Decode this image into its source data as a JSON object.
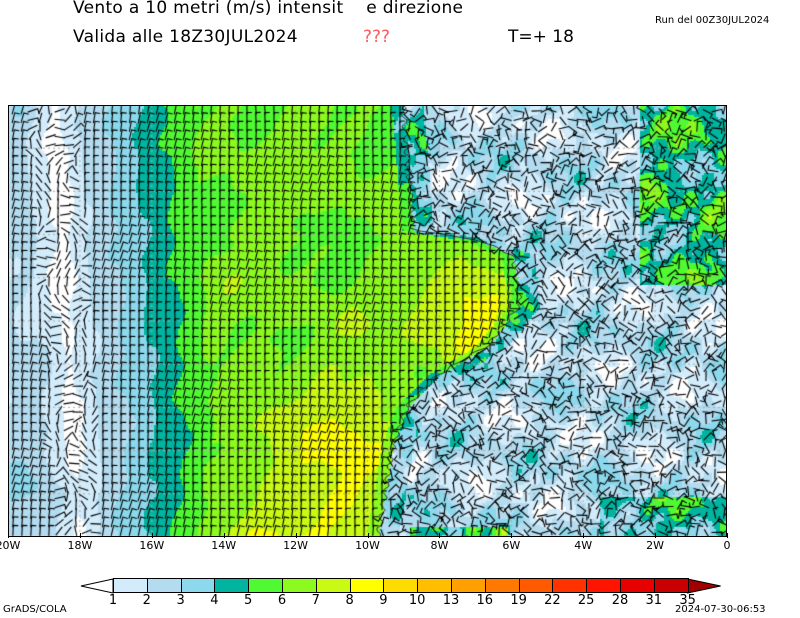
{
  "header": {
    "title": "Vento a 10 metri (m/s) intensit    e direzione",
    "valid": "Valida alle 18Z30JUL2024",
    "unknown_marker": "???",
    "timestep": "T=+ 18",
    "run": "Run del 00Z30JUL2024"
  },
  "map": {
    "lon_range": [
      -20,
      0
    ],
    "x_ticks": [
      "20W",
      "18W",
      "16W",
      "14W",
      "12W",
      "10W",
      "8W",
      "6W",
      "4W",
      "2W",
      "0"
    ],
    "gridlines": "dotted",
    "field": "wind speed 10 m with wind barbs"
  },
  "legend": {
    "levels": [
      "1",
      "2",
      "3",
      "4",
      "5",
      "6",
      "7",
      "8",
      "9",
      "10",
      "13",
      "16",
      "19",
      "22",
      "25",
      "28",
      "31",
      "35"
    ],
    "below_color": "#ffffff",
    "colors": [
      "#d2ecfc",
      "#b4dcf0",
      "#8cd8ec",
      "#00b4a0",
      "#50fa32",
      "#8cfa1e",
      "#c8fa14",
      "#ffff00",
      "#ffdc00",
      "#ffbe00",
      "#ffa000",
      "#ff7800",
      "#ff5a00",
      "#ff3200",
      "#ff1400",
      "#e60000",
      "#c80000"
    ],
    "above_color": "#a00000"
  },
  "footer": {
    "left": "GrADS/COLA",
    "right": "2024-07-30-06:53"
  }
}
